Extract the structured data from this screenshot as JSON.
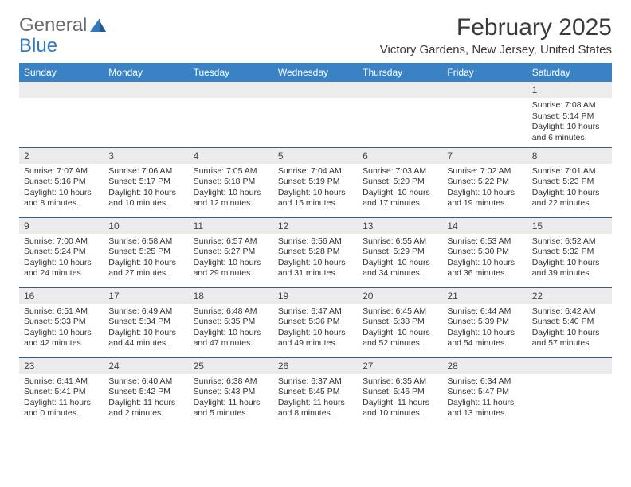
{
  "logo": {
    "text1": "General",
    "text2": "Blue"
  },
  "title": "February 2025",
  "location": "Victory Gardens, New Jersey, United States",
  "colors": {
    "header_bg": "#3b82c4",
    "header_text": "#ffffff",
    "daynum_bg": "#ececec",
    "row_border": "#2f5f8f",
    "logo_gray": "#6b6b6b",
    "logo_blue": "#2f79c2"
  },
  "day_headers": [
    "Sunday",
    "Monday",
    "Tuesday",
    "Wednesday",
    "Thursday",
    "Friday",
    "Saturday"
  ],
  "weeks": [
    [
      null,
      null,
      null,
      null,
      null,
      null,
      {
        "n": "1",
        "sr": "7:08 AM",
        "ss": "5:14 PM",
        "dl": "10 hours and 6 minutes."
      }
    ],
    [
      {
        "n": "2",
        "sr": "7:07 AM",
        "ss": "5:16 PM",
        "dl": "10 hours and 8 minutes."
      },
      {
        "n": "3",
        "sr": "7:06 AM",
        "ss": "5:17 PM",
        "dl": "10 hours and 10 minutes."
      },
      {
        "n": "4",
        "sr": "7:05 AM",
        "ss": "5:18 PM",
        "dl": "10 hours and 12 minutes."
      },
      {
        "n": "5",
        "sr": "7:04 AM",
        "ss": "5:19 PM",
        "dl": "10 hours and 15 minutes."
      },
      {
        "n": "6",
        "sr": "7:03 AM",
        "ss": "5:20 PM",
        "dl": "10 hours and 17 minutes."
      },
      {
        "n": "7",
        "sr": "7:02 AM",
        "ss": "5:22 PM",
        "dl": "10 hours and 19 minutes."
      },
      {
        "n": "8",
        "sr": "7:01 AM",
        "ss": "5:23 PM",
        "dl": "10 hours and 22 minutes."
      }
    ],
    [
      {
        "n": "9",
        "sr": "7:00 AM",
        "ss": "5:24 PM",
        "dl": "10 hours and 24 minutes."
      },
      {
        "n": "10",
        "sr": "6:58 AM",
        "ss": "5:25 PM",
        "dl": "10 hours and 27 minutes."
      },
      {
        "n": "11",
        "sr": "6:57 AM",
        "ss": "5:27 PM",
        "dl": "10 hours and 29 minutes."
      },
      {
        "n": "12",
        "sr": "6:56 AM",
        "ss": "5:28 PM",
        "dl": "10 hours and 31 minutes."
      },
      {
        "n": "13",
        "sr": "6:55 AM",
        "ss": "5:29 PM",
        "dl": "10 hours and 34 minutes."
      },
      {
        "n": "14",
        "sr": "6:53 AM",
        "ss": "5:30 PM",
        "dl": "10 hours and 36 minutes."
      },
      {
        "n": "15",
        "sr": "6:52 AM",
        "ss": "5:32 PM",
        "dl": "10 hours and 39 minutes."
      }
    ],
    [
      {
        "n": "16",
        "sr": "6:51 AM",
        "ss": "5:33 PM",
        "dl": "10 hours and 42 minutes."
      },
      {
        "n": "17",
        "sr": "6:49 AM",
        "ss": "5:34 PM",
        "dl": "10 hours and 44 minutes."
      },
      {
        "n": "18",
        "sr": "6:48 AM",
        "ss": "5:35 PM",
        "dl": "10 hours and 47 minutes."
      },
      {
        "n": "19",
        "sr": "6:47 AM",
        "ss": "5:36 PM",
        "dl": "10 hours and 49 minutes."
      },
      {
        "n": "20",
        "sr": "6:45 AM",
        "ss": "5:38 PM",
        "dl": "10 hours and 52 minutes."
      },
      {
        "n": "21",
        "sr": "6:44 AM",
        "ss": "5:39 PM",
        "dl": "10 hours and 54 minutes."
      },
      {
        "n": "22",
        "sr": "6:42 AM",
        "ss": "5:40 PM",
        "dl": "10 hours and 57 minutes."
      }
    ],
    [
      {
        "n": "23",
        "sr": "6:41 AM",
        "ss": "5:41 PM",
        "dl": "11 hours and 0 minutes."
      },
      {
        "n": "24",
        "sr": "6:40 AM",
        "ss": "5:42 PM",
        "dl": "11 hours and 2 minutes."
      },
      {
        "n": "25",
        "sr": "6:38 AM",
        "ss": "5:43 PM",
        "dl": "11 hours and 5 minutes."
      },
      {
        "n": "26",
        "sr": "6:37 AM",
        "ss": "5:45 PM",
        "dl": "11 hours and 8 minutes."
      },
      {
        "n": "27",
        "sr": "6:35 AM",
        "ss": "5:46 PM",
        "dl": "11 hours and 10 minutes."
      },
      {
        "n": "28",
        "sr": "6:34 AM",
        "ss": "5:47 PM",
        "dl": "11 hours and 13 minutes."
      },
      null
    ]
  ],
  "labels": {
    "sunrise": "Sunrise: ",
    "sunset": "Sunset: ",
    "daylight": "Daylight: "
  }
}
